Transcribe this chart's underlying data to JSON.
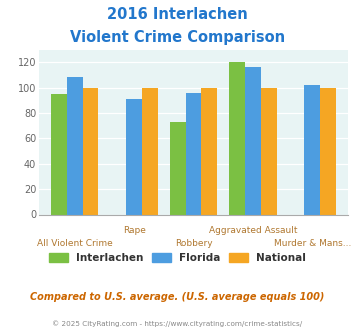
{
  "title_line1": "2016 Interlachen",
  "title_line2": "Violent Crime Comparison",
  "categories": [
    "All Violent Crime",
    "Rape",
    "Robbery",
    "Aggravated Assault",
    "Murder & Mans..."
  ],
  "series": {
    "Interlachen": [
      95,
      0,
      73,
      120,
      0
    ],
    "Florida": [
      108,
      91,
      96,
      116,
      102
    ],
    "National": [
      100,
      100,
      100,
      100,
      100
    ]
  },
  "colors": {
    "Interlachen": "#7bc043",
    "Florida": "#4d9de0",
    "National": "#f5a623"
  },
  "ylim": [
    0,
    130
  ],
  "yticks": [
    0,
    20,
    40,
    60,
    80,
    100,
    120
  ],
  "bg_color": "#e8f4f4",
  "title_color": "#2277cc",
  "axis_label_color": "#b07830",
  "footer_text": "Compared to U.S. average. (U.S. average equals 100)",
  "copyright_text": "© 2025 CityRating.com - https://www.cityrating.com/crime-statistics/",
  "footer_color": "#cc6600",
  "copyright_color": "#888888",
  "top_labels": {
    "1": "Rape",
    "3": "Aggravated Assault"
  },
  "bottom_labels": {
    "0": "All Violent Crime",
    "2": "Robbery",
    "4": "Murder & Mans..."
  }
}
